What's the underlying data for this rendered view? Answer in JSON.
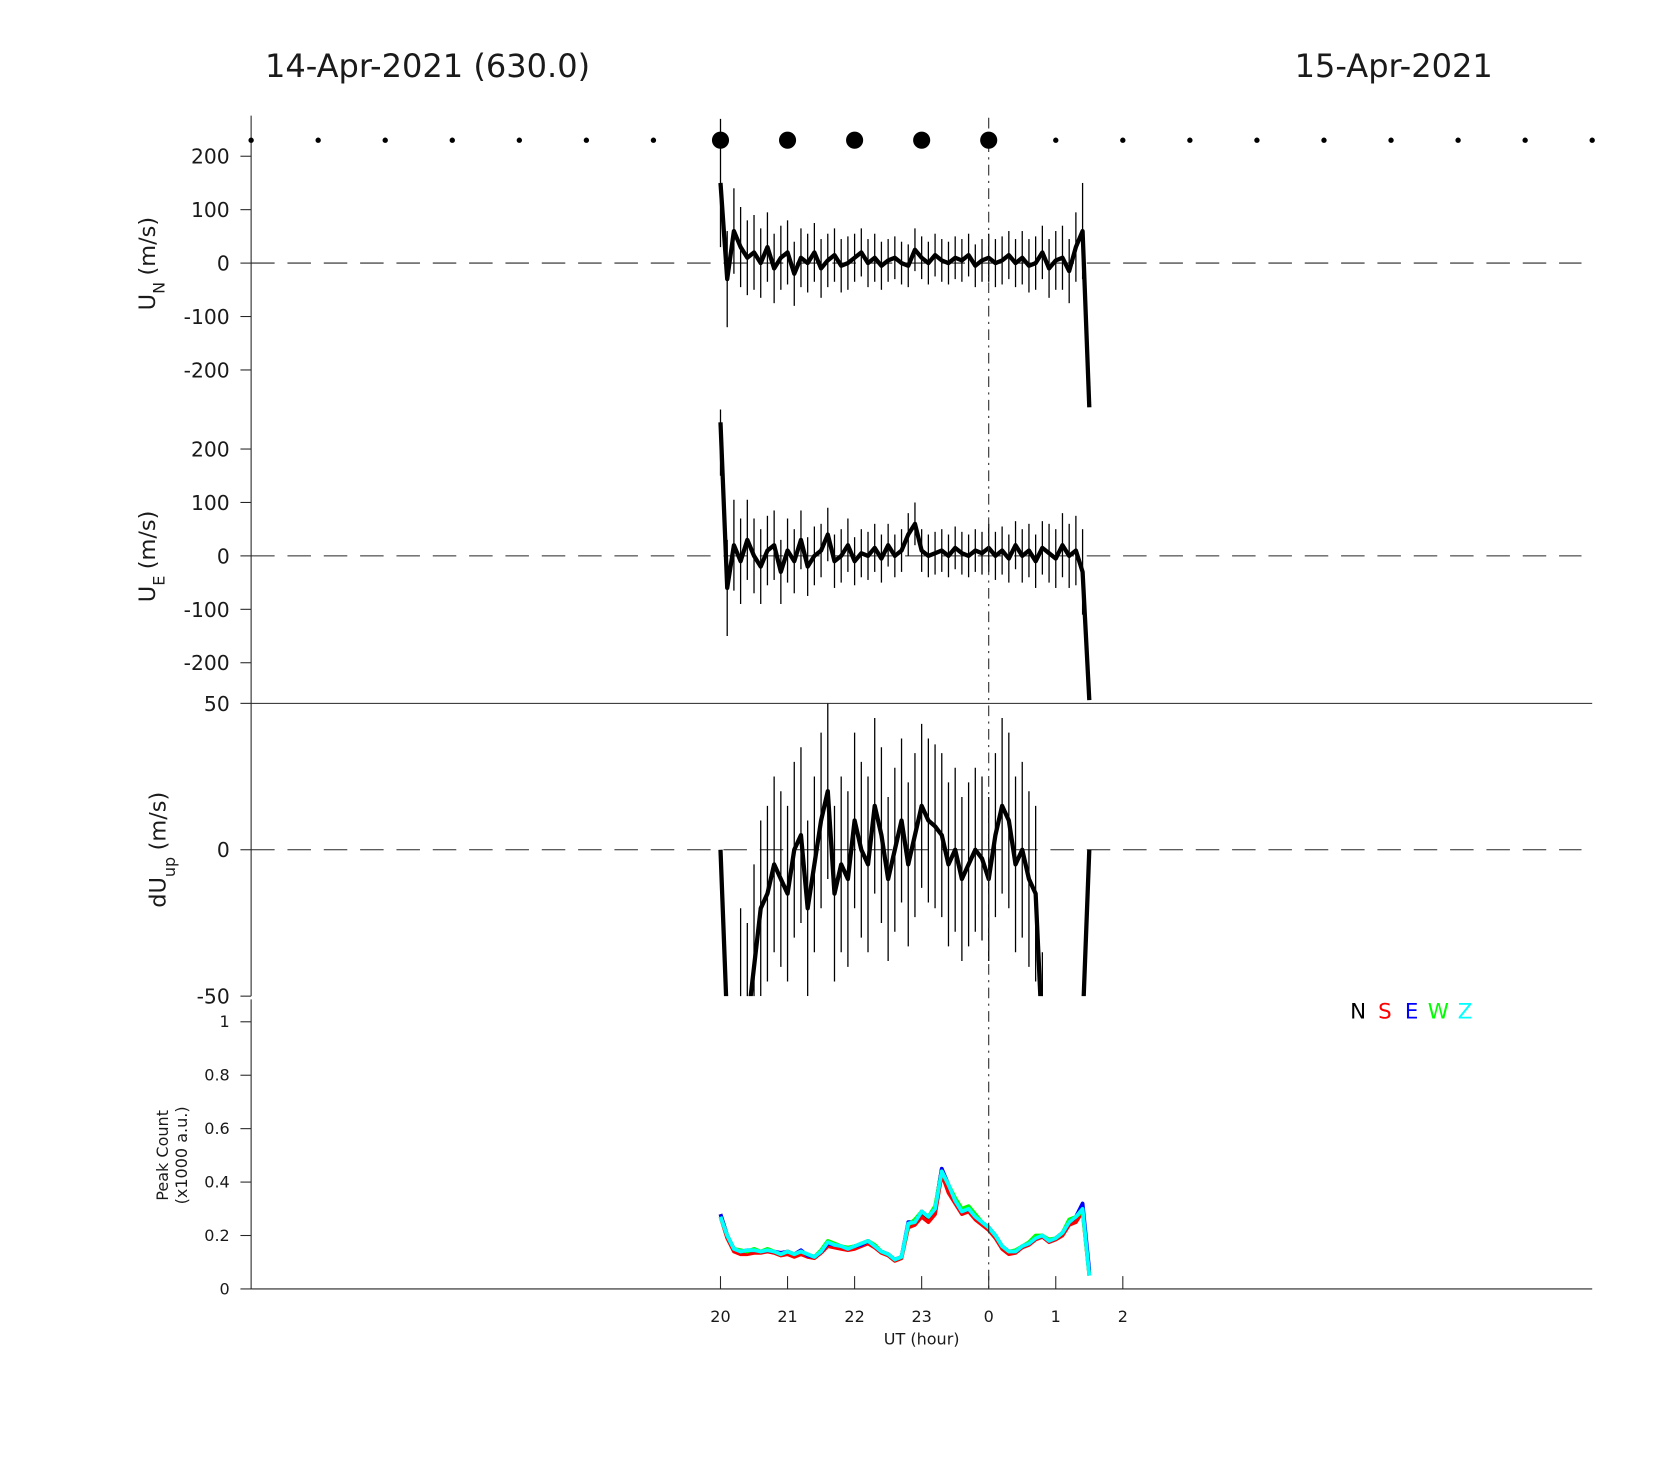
{
  "header": {
    "left_date": "14-Apr-2021 (630.0)",
    "right_date": "15-Apr-2021",
    "midnight_x": 24,
    "small_markers_x": [
      13,
      14,
      15,
      16,
      17,
      18,
      19,
      25,
      26,
      27,
      28,
      29,
      30,
      31,
      32,
      33
    ],
    "large_markers_x": [
      20,
      21,
      22,
      23,
      24
    ]
  },
  "chart_data": [
    {
      "type": "errorbar",
      "ylabel": "U",
      "ylabel_sub": "N",
      "ylabel_unit": "(m/s)",
      "xlim": [
        13,
        33
      ],
      "ylim": [
        -274,
        272
      ],
      "yticks": [
        -200,
        -100,
        0,
        100,
        200
      ],
      "zero_line": 0,
      "color": "#000000",
      "x": [
        20.0,
        20.1,
        20.2,
        20.3,
        20.4,
        20.5,
        20.6,
        20.7,
        20.8,
        20.9,
        21.0,
        21.1,
        21.2,
        21.3,
        21.4,
        21.5,
        21.6,
        21.7,
        21.8,
        21.9,
        22.0,
        22.1,
        22.2,
        22.3,
        22.4,
        22.5,
        22.6,
        22.7,
        22.8,
        22.9,
        23.0,
        23.1,
        23.2,
        23.3,
        23.4,
        23.5,
        23.6,
        23.7,
        23.8,
        23.9,
        24.0,
        24.1,
        24.2,
        24.3,
        24.4,
        24.5,
        24.6,
        24.7,
        24.8,
        24.9,
        25.0,
        25.1,
        25.2,
        25.3,
        25.4,
        25.5
      ],
      "values": [
        150,
        -30,
        60,
        30,
        10,
        20,
        0,
        30,
        -10,
        10,
        20,
        -20,
        10,
        0,
        20,
        -10,
        5,
        15,
        -5,
        0,
        10,
        20,
        0,
        10,
        -5,
        5,
        10,
        0,
        -5,
        25,
        10,
        0,
        15,
        5,
        0,
        10,
        5,
        15,
        -5,
        5,
        10,
        0,
        5,
        15,
        0,
        10,
        -5,
        0,
        20,
        -10,
        5,
        10,
        -15,
        30,
        60,
        -270
      ],
      "errors": [
        120,
        90,
        80,
        75,
        70,
        70,
        65,
        65,
        65,
        60,
        60,
        60,
        55,
        55,
        55,
        55,
        50,
        50,
        50,
        50,
        45,
        45,
        45,
        45,
        45,
        40,
        40,
        40,
        40,
        40,
        40,
        40,
        40,
        40,
        40,
        40,
        40,
        40,
        40,
        40,
        45,
        45,
        45,
        45,
        45,
        50,
        50,
        50,
        50,
        55,
        55,
        60,
        60,
        65,
        90,
        0
      ]
    },
    {
      "type": "errorbar",
      "ylabel": "U",
      "ylabel_sub": "E",
      "ylabel_unit": "(m/s)",
      "xlim": [
        13,
        33
      ],
      "ylim": [
        -276,
        274
      ],
      "yticks": [
        -200,
        -100,
        0,
        100,
        200
      ],
      "zero_line": 0,
      "color": "#000000",
      "x": [
        20.0,
        20.1,
        20.2,
        20.3,
        20.4,
        20.5,
        20.6,
        20.7,
        20.8,
        20.9,
        21.0,
        21.1,
        21.2,
        21.3,
        21.4,
        21.5,
        21.6,
        21.7,
        21.8,
        21.9,
        22.0,
        22.1,
        22.2,
        22.3,
        22.4,
        22.5,
        22.6,
        22.7,
        22.8,
        22.9,
        23.0,
        23.1,
        23.2,
        23.3,
        23.4,
        23.5,
        23.6,
        23.7,
        23.8,
        23.9,
        24.0,
        24.1,
        24.2,
        24.3,
        24.4,
        24.5,
        24.6,
        24.7,
        24.8,
        24.9,
        25.0,
        25.1,
        25.2,
        25.3,
        25.4,
        25.5
      ],
      "values": [
        250,
        -60,
        20,
        -10,
        30,
        0,
        -20,
        10,
        20,
        -30,
        10,
        -10,
        30,
        -20,
        0,
        10,
        40,
        -10,
        0,
        20,
        -10,
        5,
        0,
        15,
        -5,
        20,
        0,
        10,
        40,
        60,
        10,
        0,
        5,
        10,
        0,
        15,
        5,
        0,
        10,
        5,
        15,
        0,
        10,
        -5,
        20,
        0,
        10,
        -10,
        15,
        5,
        -5,
        20,
        0,
        10,
        -30,
        -270
      ],
      "errors": [
        100,
        90,
        85,
        80,
        75,
        70,
        70,
        65,
        65,
        60,
        60,
        60,
        55,
        55,
        55,
        50,
        50,
        50,
        50,
        50,
        45,
        45,
        45,
        45,
        45,
        40,
        40,
        40,
        40,
        40,
        40,
        40,
        40,
        40,
        40,
        40,
        40,
        40,
        40,
        40,
        45,
        45,
        45,
        45,
        45,
        50,
        50,
        50,
        50,
        55,
        55,
        60,
        60,
        65,
        80,
        0
      ]
    },
    {
      "type": "errorbar",
      "ylabel": "dU",
      "ylabel_sub": "up",
      "ylabel_unit": "(m/s)",
      "xlim": [
        13,
        33
      ],
      "ylim": [
        -50,
        50
      ],
      "yticks": [
        -50,
        0,
        50
      ],
      "zero_line": 0,
      "color": "#000000",
      "x": [
        20.0,
        20.1,
        20.2,
        20.3,
        20.4,
        20.5,
        20.6,
        20.7,
        20.8,
        20.9,
        21.0,
        21.1,
        21.2,
        21.3,
        21.4,
        21.5,
        21.6,
        21.7,
        21.8,
        21.9,
        22.0,
        22.1,
        22.2,
        22.3,
        22.4,
        22.5,
        22.6,
        22.7,
        22.8,
        22.9,
        23.0,
        23.1,
        23.2,
        23.3,
        23.4,
        23.5,
        23.6,
        23.7,
        23.8,
        23.9,
        24.0,
        24.1,
        24.2,
        24.3,
        24.4,
        24.5,
        24.6,
        24.7,
        24.8,
        24.9,
        25.0,
        25.1,
        25.2,
        25.3,
        25.4,
        25.5
      ],
      "values": [
        0,
        -60,
        -60,
        -60,
        -60,
        -40,
        -20,
        -15,
        -5,
        -10,
        -15,
        0,
        5,
        -20,
        -5,
        10,
        20,
        -15,
        -5,
        -10,
        10,
        0,
        -5,
        15,
        5,
        -10,
        0,
        10,
        -5,
        5,
        15,
        10,
        8,
        5,
        -5,
        0,
        -10,
        -5,
        0,
        -3,
        -10,
        5,
        15,
        10,
        -5,
        0,
        -10,
        -15,
        -65,
        null,
        null,
        null,
        null,
        null,
        -60,
        0
      ],
      "errors": [
        0,
        0,
        0,
        40,
        35,
        35,
        30,
        30,
        30,
        30,
        30,
        30,
        30,
        30,
        30,
        30,
        30,
        30,
        30,
        30,
        30,
        30,
        30,
        30,
        30,
        28,
        28,
        28,
        28,
        28,
        28,
        28,
        28,
        28,
        28,
        28,
        28,
        28,
        28,
        28,
        28,
        28,
        30,
        30,
        30,
        30,
        30,
        30,
        30,
        null,
        null,
        null,
        null,
        null,
        0,
        0
      ]
    },
    {
      "type": "line",
      "ylabel": "Peak Count",
      "ylabel_line2": "(x1000 a.u.)",
      "xlabel": "UT (hour)",
      "xlim": [
        13,
        33
      ],
      "ylim": [
        0,
        1
      ],
      "yticks": [
        0,
        0.2,
        0.4,
        0.6,
        0.8,
        1
      ],
      "xticks": [
        20,
        21,
        22,
        23,
        {
          "value": 24,
          "label": "0"
        },
        {
          "value": 25,
          "label": "1"
        },
        {
          "value": 26,
          "label": "2"
        }
      ],
      "x": [
        20.0,
        20.1,
        20.2,
        20.3,
        20.4,
        20.5,
        20.6,
        20.7,
        20.8,
        20.9,
        21.0,
        21.1,
        21.2,
        21.3,
        21.4,
        21.5,
        21.6,
        21.7,
        21.8,
        21.9,
        22.0,
        22.1,
        22.2,
        22.3,
        22.4,
        22.5,
        22.6,
        22.7,
        22.8,
        22.9,
        23.0,
        23.1,
        23.2,
        23.3,
        23.4,
        23.5,
        23.6,
        23.7,
        23.8,
        23.9,
        24.0,
        24.1,
        24.2,
        24.3,
        24.4,
        24.5,
        24.6,
        24.7,
        24.8,
        24.9,
        25.0,
        25.1,
        25.2,
        25.3,
        25.4,
        25.5
      ],
      "series": [
        {
          "name": "N",
          "color": "#000000",
          "values": [
            0.28,
            0.2,
            0.15,
            0.14,
            0.14,
            0.145,
            0.14,
            0.145,
            0.14,
            0.13,
            0.14,
            0.13,
            0.14,
            0.125,
            0.12,
            0.14,
            0.17,
            0.165,
            0.16,
            0.15,
            0.16,
            0.165,
            0.18,
            0.16,
            0.14,
            0.13,
            0.11,
            0.12,
            0.24,
            0.25,
            0.29,
            0.26,
            0.3,
            0.45,
            0.38,
            0.33,
            0.29,
            0.3,
            0.27,
            0.25,
            0.23,
            0.2,
            0.16,
            0.14,
            0.14,
            0.16,
            0.17,
            0.19,
            0.2,
            0.18,
            0.19,
            0.21,
            0.25,
            0.26,
            0.3,
            0.06
          ]
        },
        {
          "name": "S",
          "color": "#ff0000",
          "values": [
            0.27,
            0.19,
            0.14,
            0.13,
            0.13,
            0.135,
            0.135,
            0.14,
            0.135,
            0.125,
            0.13,
            0.12,
            0.13,
            0.12,
            0.115,
            0.135,
            0.16,
            0.155,
            0.15,
            0.145,
            0.15,
            0.16,
            0.17,
            0.155,
            0.135,
            0.125,
            0.105,
            0.115,
            0.23,
            0.24,
            0.27,
            0.25,
            0.28,
            0.43,
            0.36,
            0.32,
            0.28,
            0.29,
            0.26,
            0.24,
            0.22,
            0.19,
            0.15,
            0.13,
            0.135,
            0.155,
            0.165,
            0.185,
            0.195,
            0.175,
            0.185,
            0.2,
            0.24,
            0.25,
            0.29,
            0.05
          ]
        },
        {
          "name": "E",
          "color": "#0000ff",
          "values": [
            0.28,
            0.2,
            0.15,
            0.14,
            0.145,
            0.145,
            0.14,
            0.145,
            0.14,
            0.135,
            0.14,
            0.13,
            0.145,
            0.125,
            0.12,
            0.14,
            0.17,
            0.165,
            0.16,
            0.15,
            0.16,
            0.165,
            0.18,
            0.16,
            0.14,
            0.13,
            0.11,
            0.12,
            0.25,
            0.25,
            0.29,
            0.27,
            0.3,
            0.45,
            0.39,
            0.33,
            0.29,
            0.3,
            0.27,
            0.25,
            0.23,
            0.2,
            0.16,
            0.14,
            0.14,
            0.16,
            0.17,
            0.19,
            0.2,
            0.18,
            0.19,
            0.21,
            0.25,
            0.27,
            0.32,
            0.07
          ]
        },
        {
          "name": "W",
          "color": "#00ff00",
          "values": [
            0.27,
            0.2,
            0.15,
            0.145,
            0.14,
            0.15,
            0.14,
            0.15,
            0.14,
            0.13,
            0.14,
            0.13,
            0.14,
            0.13,
            0.12,
            0.145,
            0.18,
            0.17,
            0.16,
            0.155,
            0.16,
            0.17,
            0.18,
            0.165,
            0.14,
            0.13,
            0.11,
            0.12,
            0.24,
            0.26,
            0.29,
            0.27,
            0.31,
            0.44,
            0.39,
            0.34,
            0.3,
            0.31,
            0.28,
            0.25,
            0.23,
            0.2,
            0.16,
            0.14,
            0.145,
            0.16,
            0.175,
            0.2,
            0.2,
            0.185,
            0.19,
            0.21,
            0.26,
            0.27,
            0.29,
            0.05
          ]
        },
        {
          "name": "Z",
          "color": "#00ffff",
          "values": [
            0.27,
            0.2,
            0.15,
            0.14,
            0.145,
            0.145,
            0.14,
            0.145,
            0.14,
            0.13,
            0.14,
            0.13,
            0.14,
            0.13,
            0.12,
            0.14,
            0.175,
            0.165,
            0.16,
            0.15,
            0.16,
            0.17,
            0.18,
            0.16,
            0.14,
            0.13,
            0.11,
            0.12,
            0.245,
            0.25,
            0.29,
            0.27,
            0.3,
            0.44,
            0.39,
            0.33,
            0.29,
            0.3,
            0.27,
            0.25,
            0.23,
            0.2,
            0.16,
            0.14,
            0.14,
            0.16,
            0.17,
            0.19,
            0.2,
            0.18,
            0.19,
            0.21,
            0.25,
            0.27,
            0.3,
            0.05
          ]
        }
      ]
    }
  ]
}
